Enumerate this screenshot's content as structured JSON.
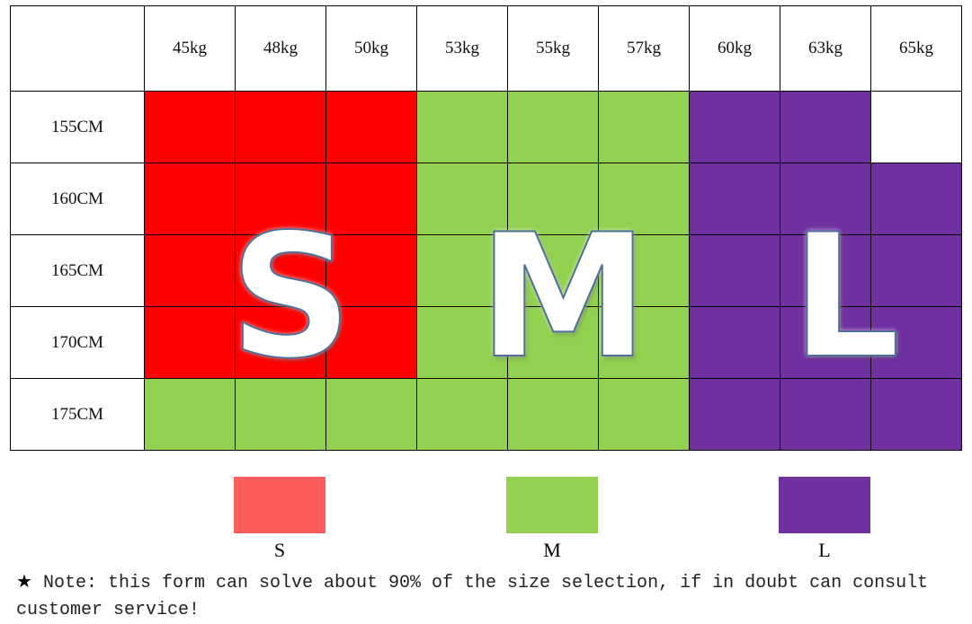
{
  "chart_data": {
    "type": "heatmap",
    "columns": [
      "45kg",
      "48kg",
      "50kg",
      "53kg",
      "55kg",
      "57kg",
      "60kg",
      "63kg",
      "65kg"
    ],
    "rows": [
      "155CM",
      "160CM",
      "165CM",
      "170CM",
      "175CM"
    ],
    "values": [
      [
        "S",
        "S",
        "S",
        "M",
        "M",
        "M",
        "L",
        "L",
        ""
      ],
      [
        "S",
        "S",
        "S",
        "M",
        "M",
        "M",
        "L",
        "L",
        "L"
      ],
      [
        "S",
        "S",
        "S",
        "M",
        "M",
        "M",
        "L",
        "L",
        "L"
      ],
      [
        "S",
        "S",
        "S",
        "M",
        "M",
        "M",
        "L",
        "L",
        "L"
      ],
      [
        "M",
        "M",
        "M",
        "M",
        "M",
        "M",
        "L",
        "L",
        "L"
      ]
    ],
    "colors": {
      "S": "#ff0000",
      "M": "#92d050",
      "L": "#7030a0"
    },
    "overlay_letters": [
      "S",
      "M",
      "L"
    ],
    "legend": [
      {
        "label": "S",
        "color": "#fc5c5c"
      },
      {
        "label": "M",
        "color": "#92d050"
      },
      {
        "label": "L",
        "color": "#7030a0"
      }
    ],
    "legend_placement": "bottom"
  },
  "note": {
    "icon": "star-icon",
    "text": "Note: this form can solve about 90% of the size selection, if in doubt can consult customer service!"
  }
}
